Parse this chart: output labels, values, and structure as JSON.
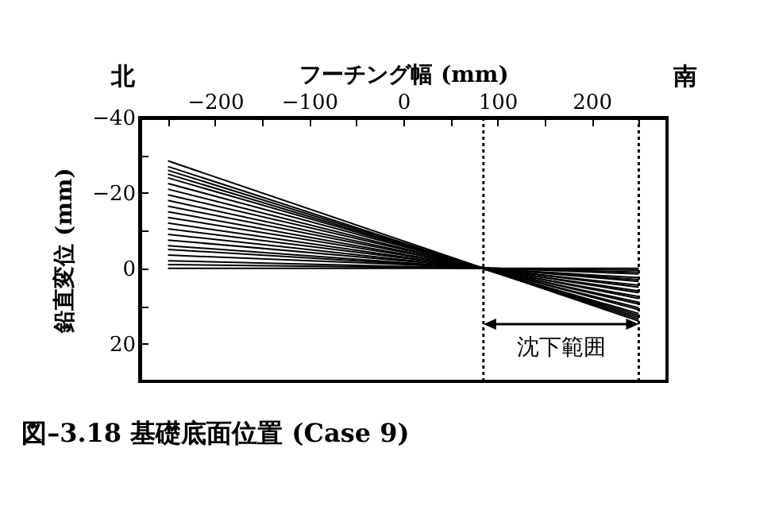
{
  "chart_data": {
    "type": "line",
    "xlabel": "フーチング幅 (mm)",
    "ylabel": "鉛直変位 (mm)",
    "title": "図–3.18  基礎底面位置 (Case 9)",
    "x": [
      -250,
      250
    ],
    "xlim": [
      -280,
      280
    ],
    "xticks": [
      {
        "value": -250,
        "label": null
      },
      -200,
      {
        "value": -150,
        "label": null
      },
      -100,
      {
        "value": -50,
        "label": null
      },
      0,
      {
        "value": 50,
        "label": null
      },
      100,
      {
        "value": 150,
        "label": null
      },
      200,
      {
        "value": 250,
        "label": null
      }
    ],
    "ylim": [
      30,
      -40
    ],
    "yticks": [
      -40,
      {
        "value": -30,
        "label": null
      },
      -20,
      {
        "value": -10,
        "label": null
      },
      0,
      {
        "value": 10,
        "label": null
      },
      20
    ],
    "grid": false,
    "marker": "none",
    "line_style": "solid",
    "series": [
      {
        "color": "#000000",
        "values": [
          0,
          0
        ]
      },
      {
        "color": "#000000",
        "values": [
          -1,
          0.5
        ]
      },
      {
        "color": "#000000",
        "values": [
          -2,
          1
        ]
      },
      {
        "color": "#000000",
        "values": [
          -3.5,
          1.5
        ]
      },
      {
        "color": "#000000",
        "values": [
          -5,
          2.5
        ]
      },
      {
        "color": "#000000",
        "values": [
          -6,
          3
        ]
      },
      {
        "color": "#000000",
        "values": [
          -7.5,
          3.5
        ]
      },
      {
        "color": "#000000",
        "values": [
          -9,
          4.5
        ]
      },
      {
        "color": "#000000",
        "values": [
          -10.5,
          5
        ]
      },
      {
        "color": "#000000",
        "values": [
          -12,
          6
        ]
      },
      {
        "color": "#000000",
        "values": [
          -13.5,
          6.5
        ]
      },
      {
        "color": "#000000",
        "values": [
          -15,
          7.5
        ]
      },
      {
        "color": "#000000",
        "values": [
          -16.5,
          8
        ]
      },
      {
        "color": "#000000",
        "values": [
          -18,
          9
        ]
      },
      {
        "color": "#000000",
        "values": [
          -19.5,
          9.5
        ]
      },
      {
        "color": "#000000",
        "values": [
          -21,
          10.5
        ]
      },
      {
        "color": "#000000",
        "values": [
          -22.5,
          11
        ]
      },
      {
        "color": "#000000",
        "values": [
          -24,
          12
        ]
      },
      {
        "color": "#000000",
        "values": [
          -25,
          12.5
        ]
      },
      {
        "color": "#000000",
        "values": [
          -26,
          13
        ]
      },
      {
        "color": "#000000",
        "values": [
          -27,
          13.5
        ]
      },
      {
        "color": "#000000",
        "values": [
          -28.5,
          14
        ]
      }
    ],
    "ref_lines": [
      {
        "axis": "x",
        "value": 85,
        "line_style": "dotted",
        "color": "#000000"
      },
      {
        "axis": "x",
        "value": 250,
        "line_style": "dotted",
        "color": "#000000"
      }
    ],
    "annotations": [
      "北",
      "南",
      "沈下範囲"
    ]
  }
}
